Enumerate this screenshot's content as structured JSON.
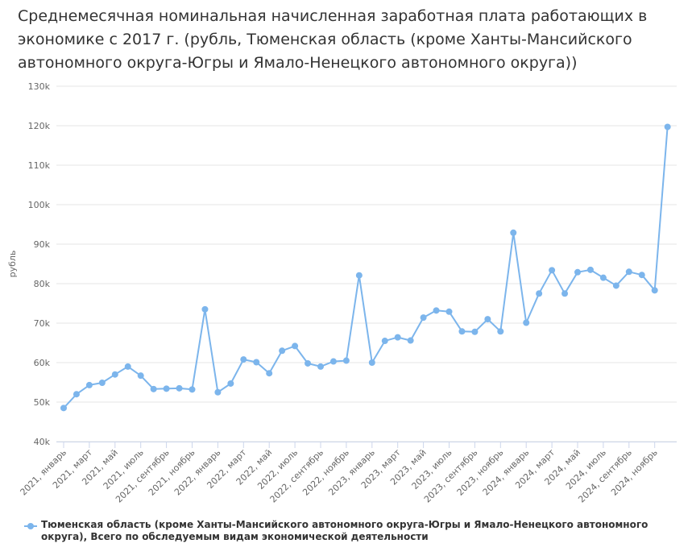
{
  "title": "Среднемесячная номинальная начисленная заработная плата работающих в экономике с 2017 г. (рубль, Тюменская область (кроме Ханты-Мансийского автономного округа-Югры и Ямало-Ненецкого автономного округа))",
  "chart_data": {
    "type": "line",
    "title": "Среднемесячная номинальная начисленная заработная плата работающих в экономике с 2017 г. (рубль, Тюменская область (кроме Ханты-Мансийского автономного округа-Югры и Ямало-Ненецкого автономного округа))",
    "ylabel": "рубль",
    "xlabel": "",
    "ylim": [
      40000,
      130000
    ],
    "y_ticks": [
      {
        "value": 40000,
        "label": "40k"
      },
      {
        "value": 50000,
        "label": "50k"
      },
      {
        "value": 60000,
        "label": "60k"
      },
      {
        "value": 70000,
        "label": "70k"
      },
      {
        "value": 80000,
        "label": "80k"
      },
      {
        "value": 90000,
        "label": "90k"
      },
      {
        "value": 100000,
        "label": "100k"
      },
      {
        "value": 110000,
        "label": "110k"
      },
      {
        "value": 120000,
        "label": "120k"
      },
      {
        "value": 130000,
        "label": "130k"
      }
    ],
    "x_tick_labels": [
      "2021, январь",
      "2021, март",
      "2021, май",
      "2021, июль",
      "2021, сентябрь",
      "2021, ноябрь",
      "2022, январь",
      "2022, март",
      "2022, май",
      "2022, июль",
      "2022, сентябрь",
      "2022, ноябрь",
      "2023, январь",
      "2023, март",
      "2023, май",
      "2023, июль",
      "2023, сентябрь",
      "2023, ноябрь",
      "2024, январь",
      "2024, март",
      "2024, май",
      "2024, июль",
      "2024, сентябрь",
      "2024, ноябрь"
    ],
    "grid": true,
    "legend_position": "bottom-left",
    "color": "#7cb5ec",
    "series": [
      {
        "name": "Тюменская область (кроме Ханты-Мансийского автономного округа-Югры и Ямало-Ненецкого автономного округа), Всего по обследуемым видам экономической деятельности",
        "values": [
          48500,
          52000,
          54300,
          54900,
          57000,
          59000,
          56700,
          53300,
          53400,
          53500,
          53200,
          73500,
          52500,
          54700,
          60800,
          60100,
          57300,
          63000,
          64200,
          59800,
          59000,
          60300,
          60500,
          82100,
          60000,
          65500,
          66400,
          65600,
          71400,
          73200,
          72900,
          67900,
          67800,
          71000,
          67900,
          92900,
          70100,
          77500,
          83400,
          77500,
          82900,
          83500,
          81500,
          79500,
          83000,
          82200,
          78300,
          119700
        ]
      }
    ]
  }
}
